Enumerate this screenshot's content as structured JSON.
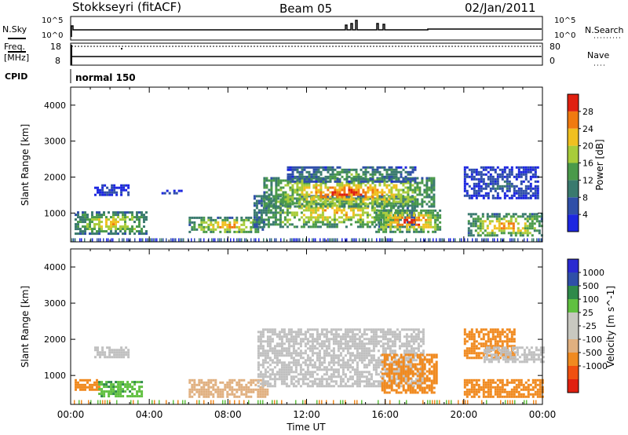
{
  "header": {
    "station": "Stokkseyri (fitACF)",
    "beam": "Beam 05",
    "date": "02/Jan/2011"
  },
  "status_panel": {
    "nsky_label": "N.Sky",
    "nsearch_label": "N.Search",
    "freq_label_1": "Freq.",
    "freq_label_2": "[MHz]",
    "nave_label": "Nave",
    "cpid_label": "CPID",
    "cpid_value": "normal 150",
    "noise_ticks_left": [
      "10^5",
      "10^0"
    ],
    "noise_ticks_right": [
      "10^5",
      "10^0"
    ],
    "freq_ticks": [
      "18",
      "8"
    ],
    "nave_ticks": [
      "80",
      "0"
    ]
  },
  "colors": {
    "power_scale": [
      "#1c26e0",
      "#2f4fa8",
      "#3a7a6e",
      "#4a9a4a",
      "#a8cc3a",
      "#f0c020",
      "#f07a10",
      "#e02010"
    ],
    "velocity_scale": [
      "#e02010",
      "#f05010",
      "#f08a20",
      "#e0b080",
      "#c8c8c0",
      "#c8c8c0",
      "#60c040",
      "#2f8a4a",
      "#2f4fa8",
      "#2a2ad0"
    ],
    "ground_scatter": "#c0c0c0"
  },
  "chart_data": [
    {
      "type": "heatmap",
      "panel": "power",
      "ylabel": "Slant Range [km]",
      "yticks": [
        "1000",
        "2000",
        "3000",
        "4000"
      ],
      "ylim": [
        200,
        4500
      ],
      "xlim_hours": [
        0,
        24
      ],
      "colorbar_label": "Power [dB]",
      "colorbar_ticks": [
        "4",
        "8",
        "12",
        "16",
        "20",
        "24",
        "28"
      ],
      "colorbar_range": [
        0,
        30
      ],
      "regions": [
        {
          "t0": 0.2,
          "t1": 3.8,
          "r0": 450,
          "r1": 1050,
          "level": 18
        },
        {
          "t0": 1.2,
          "t1": 2.9,
          "r0": 1500,
          "r1": 1800,
          "level": 4
        },
        {
          "t0": 4.5,
          "t1": 5.6,
          "r0": 1550,
          "r1": 1650,
          "level": 4
        },
        {
          "t0": 6.0,
          "t1": 9.8,
          "r0": 450,
          "r1": 900,
          "level": 20
        },
        {
          "t0": 9.3,
          "t1": 17.5,
          "r0": 600,
          "r1": 1500,
          "level": 18
        },
        {
          "t0": 9.8,
          "t1": 18.5,
          "r0": 1200,
          "r1": 2000,
          "level": 22
        },
        {
          "t0": 11.0,
          "t1": 17.5,
          "r0": 1900,
          "r1": 2300,
          "level": 12
        },
        {
          "t0": 15.5,
          "t1": 18.8,
          "r0": 500,
          "r1": 1100,
          "level": 24
        },
        {
          "t0": 20.2,
          "t1": 24.0,
          "r0": 350,
          "r1": 1000,
          "level": 20
        },
        {
          "t0": 20.0,
          "t1": 23.8,
          "r0": 1400,
          "r1": 2300,
          "level": 6
        }
      ]
    },
    {
      "type": "heatmap",
      "panel": "velocity",
      "xlabel": "Time UT",
      "ylabel": "Slant Range [km]",
      "yticks": [
        "1000",
        "2000",
        "3000",
        "4000"
      ],
      "xticks": [
        "00:00",
        "04:00",
        "08:00",
        "12:00",
        "16:00",
        "20:00",
        "00:00"
      ],
      "ylim": [
        200,
        4500
      ],
      "xlim_hours": [
        0,
        24
      ],
      "colorbar_label": "Velocity [m s^-1]",
      "colorbar_ticks": [
        "1000",
        "500",
        "100",
        "25",
        "-25",
        "-100",
        "-500",
        "-1000"
      ],
      "regions": [
        {
          "t0": 0.2,
          "t1": 1.4,
          "r0": 600,
          "r1": 900,
          "v": -200
        },
        {
          "t0": 1.4,
          "t1": 3.6,
          "r0": 400,
          "r1": 850,
          "v": 80
        },
        {
          "t0": 1.2,
          "t1": 2.9,
          "r0": 1500,
          "r1": 1800,
          "v": 0
        },
        {
          "t0": 6.0,
          "t1": 10.0,
          "r0": 400,
          "r1": 900,
          "v": -60
        },
        {
          "t0": 9.5,
          "t1": 18.0,
          "r0": 700,
          "r1": 2300,
          "v": 0
        },
        {
          "t0": 15.8,
          "t1": 18.6,
          "r0": 500,
          "r1": 1600,
          "v": -300
        },
        {
          "t0": 20.0,
          "t1": 24.0,
          "r0": 400,
          "r1": 900,
          "v": -250
        },
        {
          "t0": 20.0,
          "t1": 22.6,
          "r0": 1500,
          "r1": 2300,
          "v": -200
        },
        {
          "t0": 21.0,
          "t1": 24.0,
          "r0": 1400,
          "r1": 1800,
          "v": 0
        }
      ]
    }
  ]
}
